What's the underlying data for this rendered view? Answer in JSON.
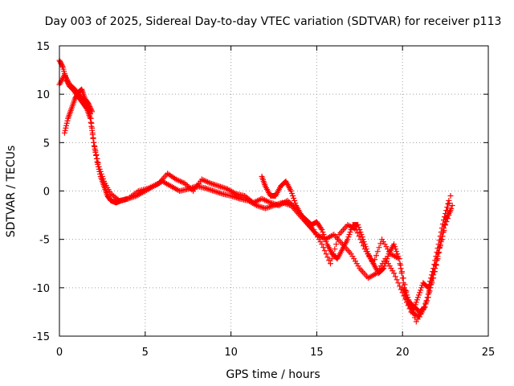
{
  "chart_data": {
    "type": "scatter",
    "title": "Day 003 of 2025, Sidereal Day-to-day VTEC variation (SDTVAR) for receiver p113",
    "xlabel": "GPS time / hours",
    "ylabel": "SDTVAR / TECUs",
    "xlim": [
      0,
      25
    ],
    "ylim": [
      -15,
      15
    ],
    "x_ticks": [
      "0",
      "5",
      "10",
      "15",
      "20",
      "25"
    ],
    "y_ticks": [
      "15",
      "10",
      "5",
      "0",
      "-5",
      "-10",
      "-15"
    ],
    "grid": true,
    "marker": "+",
    "color": "#ff0000",
    "series": [
      {
        "segments": [
          {
            "x": [
              0.0,
              0.2,
              0.4,
              0.6,
              0.8,
              1.0,
              1.2,
              1.4,
              1.6,
              1.8,
              2.0,
              2.2,
              2.4,
              2.6,
              2.8,
              3.0,
              3.3,
              3.6,
              4.0,
              4.5,
              5.0,
              5.5,
              6.0,
              6.5,
              7.0,
              7.5,
              8.0,
              8.5,
              9.0,
              9.5,
              10.0,
              10.5,
              11.0,
              11.5,
              12.0,
              12.5,
              13.0,
              13.5,
              14.0,
              14.5,
              15.0,
              15.5,
              16.0,
              16.5,
              17.0,
              17.5,
              18.0,
              18.5,
              19.0,
              19.5,
              20.0,
              20.5,
              21.0,
              21.5,
              22.0,
              22.5,
              22.9
            ],
            "y": [
              13.5,
              12.8,
              11.5,
              10.8,
              10.5,
              10.0,
              9.5,
              9.0,
              8.5,
              7.5,
              5.0,
              3.0,
              1.5,
              0.5,
              -0.5,
              -1.0,
              -1.2,
              -1.0,
              -0.8,
              -0.5,
              0.0,
              0.5,
              1.0,
              0.5,
              0.0,
              0.2,
              0.5,
              0.3,
              0.0,
              -0.3,
              -0.5,
              -0.8,
              -1.0,
              -1.5,
              -1.8,
              -1.5,
              -1.2,
              -1.5,
              -2.5,
              -3.5,
              -4.5,
              -5.0,
              -4.5,
              -5.5,
              -6.5,
              -8.0,
              -9.0,
              -8.5,
              -7.0,
              -8.5,
              -10.5,
              -12.5,
              -13.0,
              -11.0,
              -7.0,
              -3.5,
              -1.5
            ]
          },
          {
            "x": [
              0.0,
              0.3,
              0.6,
              0.9,
              1.2,
              1.5,
              1.8,
              2.0,
              2.3,
              2.6,
              3.0,
              3.5,
              4.0,
              4.6,
              5.2,
              5.8,
              6.3,
              6.8,
              7.3,
              7.8,
              8.3,
              8.8,
              9.3,
              9.8,
              10.3,
              10.8,
              11.3,
              11.8,
              12.3,
              12.8,
              13.3,
              13.8,
              14.3,
              14.8,
              15.3,
              15.8,
              16.3,
              16.8,
              17.3,
              17.8,
              18.3,
              18.8,
              19.3,
              19.8,
              20.3,
              20.8,
              21.3,
              21.8,
              22.3,
              22.8
            ],
            "y": [
              11.0,
              12.0,
              11.0,
              10.5,
              9.8,
              9.2,
              8.0,
              5.0,
              2.5,
              1.0,
              -0.3,
              -1.0,
              -0.8,
              0.0,
              0.3,
              0.8,
              1.8,
              1.2,
              0.8,
              0.0,
              1.2,
              0.8,
              0.5,
              0.2,
              -0.3,
              -0.5,
              -1.2,
              -0.8,
              -1.2,
              -1.5,
              -1.0,
              -1.8,
              -3.0,
              -4.0,
              -5.5,
              -7.5,
              -4.5,
              -3.5,
              -4.0,
              -6.0,
              -7.5,
              -5.0,
              -6.5,
              -7.0,
              -11.0,
              -13.5,
              -12.0,
              -9.0,
              -5.0,
              -0.5
            ]
          },
          {
            "x": [
              0.3,
              0.5,
              0.7,
              0.9,
              1.1,
              1.3,
              1.5,
              1.7,
              1.9
            ],
            "y": [
              6.0,
              7.5,
              8.5,
              9.5,
              10.2,
              10.5,
              9.5,
              9.0,
              8.2
            ]
          },
          {
            "x": [
              11.8,
              12.0,
              12.3,
              12.6,
              12.9,
              13.2,
              13.5,
              13.8,
              14.1,
              14.4,
              14.7,
              15.0,
              15.3,
              15.6,
              15.9,
              16.2,
              16.5,
              16.8,
              17.1,
              17.4,
              17.7,
              18.0,
              18.3,
              18.6,
              18.9,
              19.2,
              19.5,
              19.8,
              20.1,
              20.4,
              20.7,
              21.0,
              21.3,
              21.6,
              21.9,
              22.2,
              22.5,
              22.8
            ],
            "y": [
              1.5,
              0.5,
              -0.5,
              -0.5,
              0.5,
              1.0,
              0.0,
              -1.5,
              -2.5,
              -3.0,
              -3.5,
              -3.2,
              -4.0,
              -5.5,
              -6.5,
              -7.0,
              -6.0,
              -5.0,
              -3.5,
              -3.5,
              -5.0,
              -6.5,
              -7.5,
              -8.5,
              -8.0,
              -6.5,
              -5.5,
              -7.0,
              -10.0,
              -11.5,
              -12.0,
              -12.5,
              -12.0,
              -10.0,
              -8.0,
              -5.5,
              -3.0,
              -2.0
            ]
          },
          {
            "x": [
              20.0,
              20.3,
              20.6,
              20.9,
              21.2,
              21.5,
              21.8,
              22.1,
              22.4,
              22.7
            ],
            "y": [
              -10.0,
              -11.5,
              -12.5,
              -11.0,
              -9.5,
              -10.0,
              -8.0,
              -5.5,
              -3.0,
              -1.0
            ]
          }
        ]
      }
    ]
  }
}
